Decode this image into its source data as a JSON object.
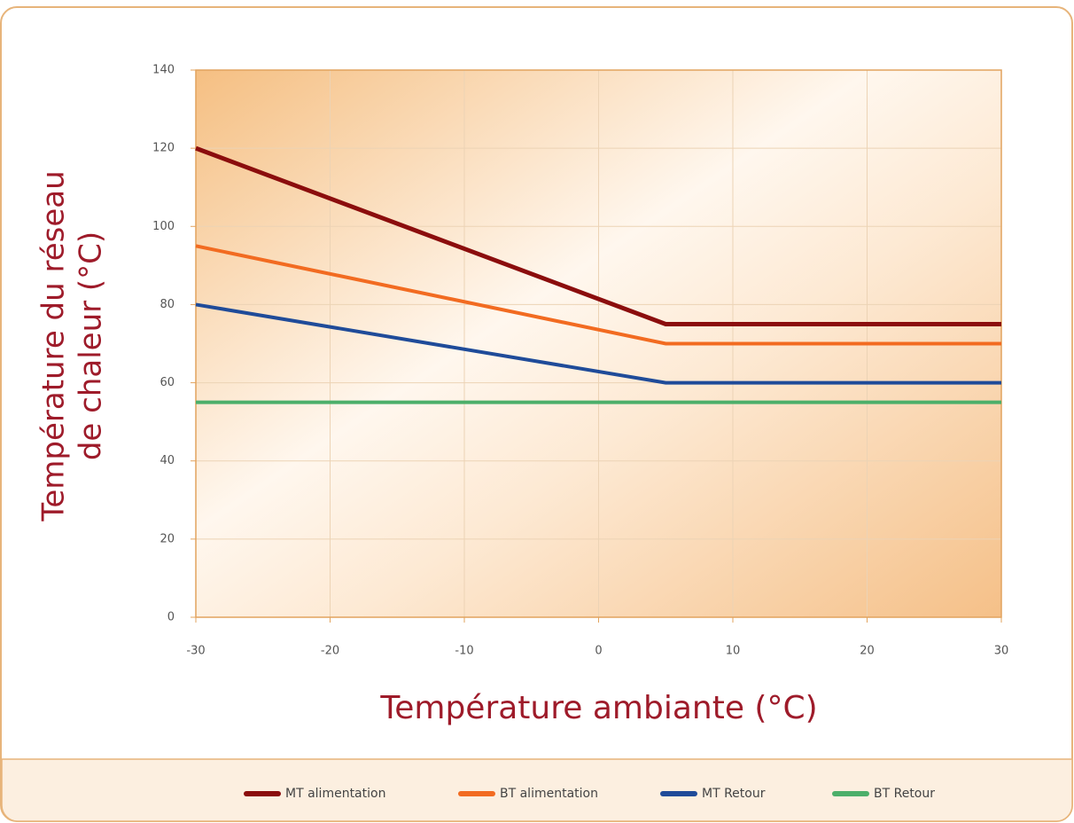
{
  "chart_data": {
    "type": "line",
    "x": [
      -30,
      5,
      30
    ],
    "series": [
      {
        "name": "MT alimentation",
        "color": "#8b0d0d",
        "values": [
          120,
          75,
          75
        ]
      },
      {
        "name": "BT alimentation",
        "color": "#f26b21",
        "values": [
          95,
          70,
          70
        ]
      },
      {
        "name": "MT Retour",
        "color": "#1f4b99",
        "values": [
          80,
          60,
          60
        ]
      },
      {
        "name": "BT Retour",
        "color": "#4caf6a",
        "values": [
          55,
          55,
          55
        ]
      }
    ],
    "xlabel": "Température ambiante (°C)",
    "ylabel": [
      "Température du réseau",
      "de chaleur (°C)"
    ],
    "xlim": [
      -30,
      30
    ],
    "xticks": [
      -30,
      -20,
      -10,
      0,
      10,
      20,
      30
    ],
    "ylim": [
      0,
      140
    ],
    "yticks": [
      0,
      20,
      40,
      60,
      80,
      100,
      120,
      140
    ],
    "grid": true,
    "legend": "bottom"
  }
}
